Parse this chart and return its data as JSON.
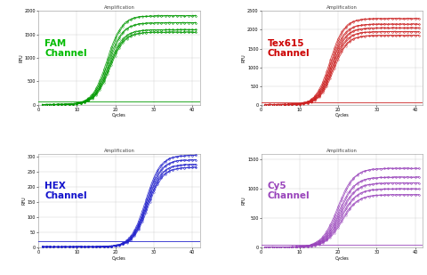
{
  "panels": [
    {
      "label": "FAM\nChannel",
      "label_color": "#00bb00",
      "color": "#009900",
      "plateau_groups": [
        1900,
        1750,
        1600,
        1550
      ],
      "inflection": 18,
      "steepness": 0.52,
      "baseline": 5,
      "ylim": [
        0,
        2000
      ],
      "yticks": [
        0,
        500,
        1000,
        1500,
        2000
      ],
      "n_per_group": 2,
      "flat_line": true,
      "flat_y": 80,
      "spread_inflection": 1.0
    },
    {
      "label": "Tex615\nChannel",
      "label_color": "#cc0000",
      "color": "#cc2222",
      "plateau_groups": [
        2300,
        2150,
        2050,
        1950,
        1850
      ],
      "inflection": 18,
      "steepness": 0.55,
      "baseline": 5,
      "ylim": [
        0,
        2500
      ],
      "yticks": [
        0,
        500,
        1000,
        1500,
        2000,
        2500
      ],
      "n_per_group": 2,
      "flat_line": true,
      "flat_y": 70,
      "spread_inflection": 1.2
    },
    {
      "label": "HEX\nChannel",
      "label_color": "#1111cc",
      "color": "#2222cc",
      "plateau_groups": [
        305,
        290,
        275,
        265
      ],
      "inflection": 28,
      "steepness": 0.52,
      "baseline": 2,
      "ylim": [
        0,
        310
      ],
      "yticks": [
        0,
        50,
        100,
        150,
        200,
        250,
        300
      ],
      "n_per_group": 2,
      "flat_line": true,
      "flat_y": 20,
      "spread_inflection": 0.8
    },
    {
      "label": "Cy5\nChannel",
      "label_color": "#9944bb",
      "color": "#9944bb",
      "plateau_groups": [
        1350,
        1200,
        1100,
        1000,
        900
      ],
      "inflection": 20,
      "steepness": 0.48,
      "baseline": 5,
      "ylim": [
        0,
        1600
      ],
      "yticks": [
        0,
        500,
        1000,
        1500
      ],
      "n_per_group": 2,
      "flat_line": true,
      "flat_y": 50,
      "spread_inflection": 1.5
    }
  ],
  "bg_color": "#ffffff",
  "plot_bg": "#ffffff",
  "grid_color": "#cccccc",
  "xlim": [
    0,
    42
  ],
  "xticks": [
    0,
    10,
    20,
    30,
    40
  ]
}
